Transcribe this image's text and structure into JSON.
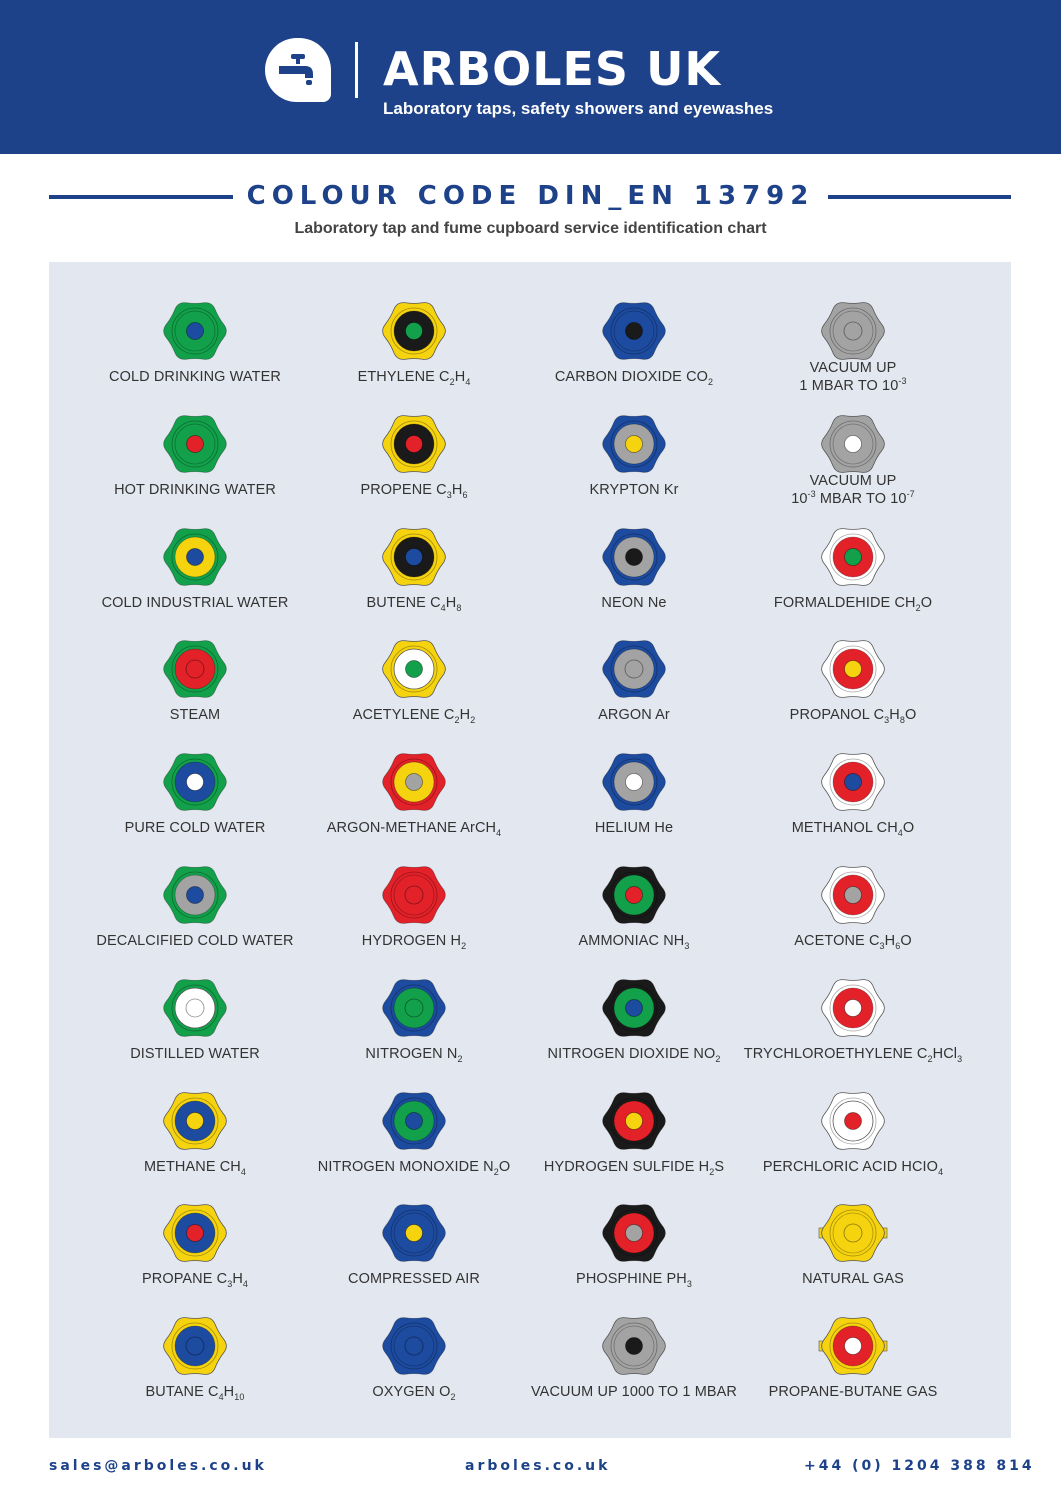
{
  "header": {
    "brand_name": "ARBOLES UK",
    "tagline": "Laboratory taps, safety showers and eyewashes",
    "logo_icon": "tap-icon",
    "background": "#1d4289"
  },
  "title": "COLOUR CODE DIN_EN 13792",
  "subtitle": "Laboratory tap and fume cupboard service identification chart",
  "colors": {
    "green": "#12a14a",
    "yellow": "#f6d30f",
    "blue": "#1d4ba0",
    "grey": "#a3a3a3",
    "red": "#e32129",
    "white": "#ffffff",
    "black": "#1a1a1a"
  },
  "columns": [
    {
      "items": [
        {
          "name": "COLD DRINKING WATER",
          "outer": "green",
          "ring": "green",
          "centre": "blue"
        },
        {
          "name": "HOT DRINKING WATER",
          "outer": "green",
          "ring": "green",
          "centre": "red"
        },
        {
          "name": "COLD INDUSTRIAL WATER",
          "outer": "green",
          "ring": "yellow",
          "centre": "blue"
        },
        {
          "name": "STEAM",
          "outer": "green",
          "ring": "red",
          "centre": "red"
        },
        {
          "name": "PURE COLD WATER",
          "outer": "green",
          "ring": "blue",
          "centre": "white"
        },
        {
          "name": "DECALCIFIED COLD WATER",
          "outer": "green",
          "ring": "grey",
          "centre": "blue"
        },
        {
          "name": "DISTILLED WATER",
          "outer": "green",
          "ring": "white",
          "centre": "white"
        },
        {
          "name": "METHANE CH",
          "sub": "4",
          "outer": "yellow",
          "ring": "blue",
          "centre": "yellow"
        },
        {
          "name": "PROPANE C",
          "sub": "3",
          "name2": "H",
          "sub2": "4",
          "outer": "yellow",
          "ring": "blue",
          "centre": "red"
        },
        {
          "name": "BUTANE C",
          "sub": "4",
          "name2": "H",
          "sub2": "10",
          "outer": "yellow",
          "ring": "blue",
          "centre": "blue"
        }
      ]
    },
    {
      "items": [
        {
          "name": "ETHYLENE C",
          "sub": "2",
          "name2": "H",
          "sub2": "4",
          "outer": "yellow",
          "ring": "black",
          "centre": "green"
        },
        {
          "name": "PROPENE C",
          "sub": "3",
          "name2": "H",
          "sub2": "6",
          "outer": "yellow",
          "ring": "black",
          "centre": "red"
        },
        {
          "name": "BUTENE C",
          "sub": "4",
          "name2": "H",
          "sub2": "8",
          "outer": "yellow",
          "ring": "black",
          "centre": "blue"
        },
        {
          "name": "ACETYLENE C",
          "sub": "2",
          "name2": "H",
          "sub2": "2",
          "outer": "yellow",
          "ring": "white",
          "centre": "green"
        },
        {
          "name": "ARGON-METHANE ArCH",
          "sub": "4",
          "outer": "red",
          "ring": "yellow",
          "centre": "grey"
        },
        {
          "name": "HYDROGEN H",
          "sub": "2",
          "outer": "red",
          "ring": "red",
          "centre": "red"
        },
        {
          "name": "NITROGEN N",
          "sub": "2",
          "outer": "blue",
          "ring": "green",
          "centre": "green"
        },
        {
          "name": "NITROGEN MONOXIDE N",
          "sub": "2",
          "name2": "O",
          "outer": "blue",
          "ring": "green",
          "centre": "blue"
        },
        {
          "name": "COMPRESSED AIR",
          "outer": "blue",
          "ring": "blue",
          "centre": "yellow"
        },
        {
          "name": "OXYGEN O",
          "sub": "2",
          "outer": "blue",
          "ring": "blue",
          "centre": "blue"
        }
      ]
    },
    {
      "items": [
        {
          "name": "CARBON DIOXIDE CO",
          "sub": "2",
          "outer": "blue",
          "ring": "blue",
          "centre": "black"
        },
        {
          "name": "KRYPTON Kr",
          "outer": "blue",
          "ring": "grey",
          "centre": "yellow"
        },
        {
          "name": "NEON Ne",
          "outer": "blue",
          "ring": "grey",
          "centre": "black"
        },
        {
          "name": "ARGON Ar",
          "outer": "blue",
          "ring": "grey",
          "centre": "grey"
        },
        {
          "name": "HELIUM He",
          "outer": "blue",
          "ring": "grey",
          "centre": "white"
        },
        {
          "name": "AMMONIAC NH",
          "sub": "3",
          "outer": "black",
          "ring": "green",
          "centre": "red"
        },
        {
          "name": "NITROGEN DIOXIDE NO",
          "sub": "2",
          "outer": "black",
          "ring": "green",
          "centre": "blue"
        },
        {
          "name": "HYDROGEN SULFIDE H",
          "sub": "2",
          "name2": "S",
          "outer": "black",
          "ring": "red",
          "centre": "yellow"
        },
        {
          "name": "PHOSPHINE PH",
          "sub": "3",
          "outer": "black",
          "ring": "red",
          "centre": "grey"
        },
        {
          "name": "VACUUM UP 1000 TO 1 MBAR",
          "outer": "grey",
          "ring": "grey",
          "centre": "black"
        }
      ]
    },
    {
      "items": [
        {
          "name": "VACUUM UP",
          "line2": "1 MBAR TO 10",
          "sup": "-3",
          "outer": "grey",
          "ring": "grey",
          "centre": "grey"
        },
        {
          "name": "VACUUM UP",
          "line2pre": "10",
          "line2presup": "-3",
          "line2": " MBAR TO 10",
          "sup": "-7",
          "outer": "grey",
          "ring": "grey",
          "centre": "white"
        },
        {
          "name": "FORMALDEHIDE CH",
          "sub": "2",
          "name2": "O",
          "outer": "white",
          "ring": "red",
          "centre": "green"
        },
        {
          "name": "PROPANOL C",
          "sub": "3",
          "name2": "H",
          "sub2": "8",
          "name3": "O",
          "outer": "white",
          "ring": "red",
          "centre": "yellow"
        },
        {
          "name": "METHANOL CH",
          "sub": "4",
          "name2": "O",
          "outer": "white",
          "ring": "red",
          "centre": "blue"
        },
        {
          "name": "ACETONE C",
          "sub": "3",
          "name2": "H",
          "sub2": "6",
          "name3": "O",
          "outer": "white",
          "ring": "red",
          "centre": "grey"
        },
        {
          "name": "TRYCHLOROETHYLENE C",
          "sub": "2",
          "name2": "HCl",
          "sub2": "3",
          "outer": "white",
          "ring": "red",
          "centre": "white"
        },
        {
          "name": "PERCHLORIC ACID HCIO",
          "sub": "4",
          "outer": "white",
          "ring": "white",
          "centre": "red"
        },
        {
          "name": "NATURAL GAS",
          "outer": "yellow",
          "ring": "yellow",
          "centre": "yellow",
          "bar": true
        },
        {
          "name": "PROPANE-BUTANE GAS",
          "outer": "yellow",
          "ring": "red",
          "centre": "white",
          "bar": true
        }
      ]
    }
  ],
  "footer": {
    "email": "sales@arboles.co.uk",
    "website": "arboles.co.uk",
    "phone": "+44 (0) 1204 388 814"
  }
}
